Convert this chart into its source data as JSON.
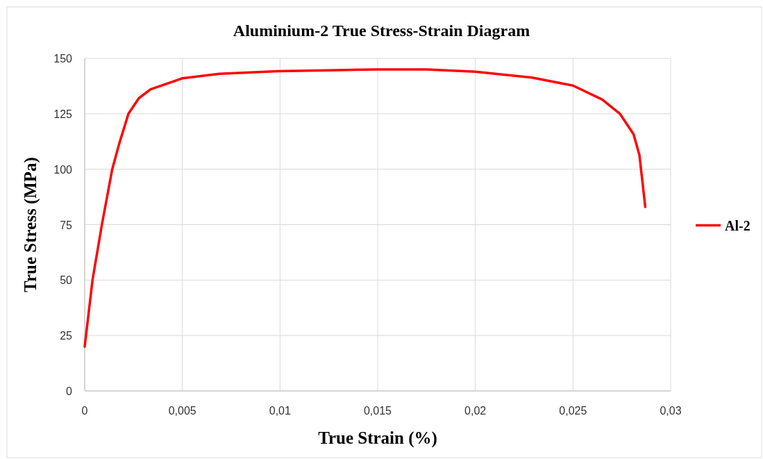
{
  "chart_data": {
    "type": "line",
    "title": "Aluminium-2  True Stress-Strain Diagram",
    "xlabel": "True Strain  (%)",
    "ylabel": "True Stress  (MPa)",
    "x": [
      0,
      0.0004,
      0.00088,
      0.00141,
      0.00177,
      0.00224,
      0.00277,
      0.00337,
      0.005,
      0.0069,
      0.0099,
      0.0125,
      0.015,
      0.0175,
      0.02,
      0.0229,
      0.025,
      0.0265,
      0.0274,
      0.0281,
      0.0284,
      0.0287
    ],
    "series": [
      {
        "name": "Al-2",
        "color": "#ff0000",
        "values": [
          20,
          50,
          75,
          100,
          111.6,
          125,
          132,
          136,
          141,
          143,
          144.2,
          144.6,
          145,
          145,
          144,
          141.3,
          137.7,
          131.4,
          125,
          115.8,
          106.4,
          83
        ]
      }
    ],
    "xlim": [
      0,
      0.03
    ],
    "xticks": [
      0,
      {
        "value": 0.005,
        "label": "0,005"
      },
      {
        "value": 0.01,
        "label": "0,01"
      },
      {
        "value": 0.015,
        "label": "0,015"
      },
      {
        "value": 0.02,
        "label": "0,02"
      },
      {
        "value": 0.025,
        "label": "0,025"
      },
      {
        "value": 0.03,
        "label": "0,03"
      }
    ],
    "ylim": [
      0,
      150
    ],
    "yticks": [
      0,
      25,
      50,
      75,
      100,
      125,
      150
    ],
    "grid": true,
    "legend": "right",
    "marker": "none",
    "line_style": "solid"
  }
}
